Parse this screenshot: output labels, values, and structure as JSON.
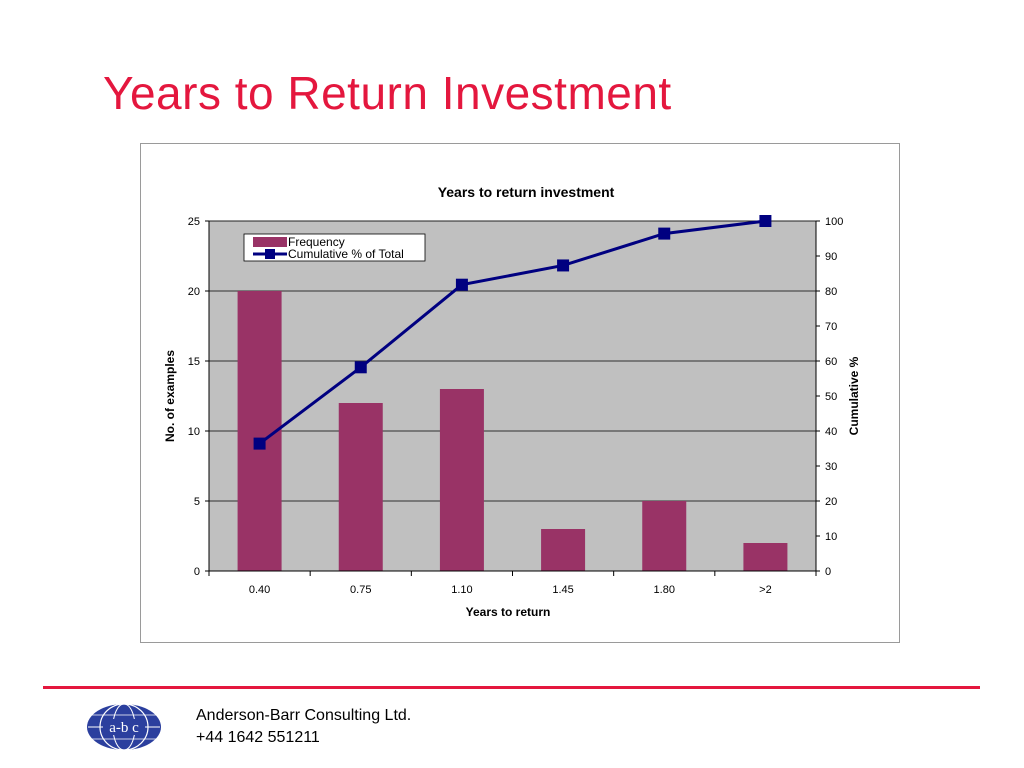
{
  "slide": {
    "title": "Years to Return Investment"
  },
  "footer": {
    "company": "Anderson-Barr Consulting Ltd.",
    "phone": "+44 1642 551211",
    "logo_text": "a-b c"
  },
  "colors": {
    "title": "#e4173e",
    "rule": "#e4173e",
    "bar": "#993366",
    "line": "#000080",
    "plot_bg": "#c0c0c0",
    "logo": "#2b3f9e"
  },
  "chart_data": {
    "type": "bar",
    "title": "Years to return investment",
    "xlabel": "Years to return",
    "ylabel": "No. of examples",
    "y2label": "Cumulative %",
    "categories": [
      "0.40",
      "0.75",
      "1.10",
      "1.45",
      "1.80",
      ">2"
    ],
    "series": [
      {
        "name": "Frequency",
        "type": "bar",
        "axis": "left",
        "values": [
          20,
          12,
          13,
          3,
          5,
          2
        ]
      },
      {
        "name": "Cumulative % of Total",
        "type": "line",
        "axis": "right",
        "values": [
          36.4,
          58.2,
          81.8,
          87.3,
          96.4,
          100
        ]
      }
    ],
    "ylim": [
      0,
      25
    ],
    "y_ticks": [
      "0",
      "5",
      "10",
      "15",
      "20",
      "25"
    ],
    "y2lim": [
      0,
      100
    ],
    "y2_ticks": [
      "0",
      "10",
      "20",
      "30",
      "40",
      "50",
      "60",
      "70",
      "80",
      "90",
      "100"
    ],
    "grid": true,
    "legend": "top-left"
  }
}
